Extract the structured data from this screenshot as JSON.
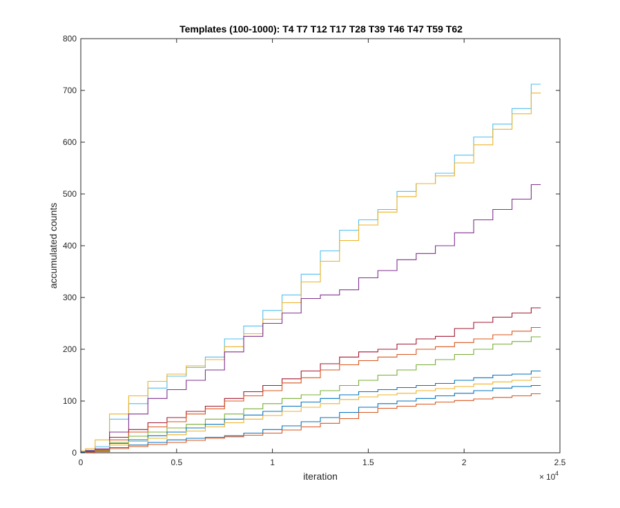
{
  "chart_data": {
    "type": "line",
    "title": "Templates (100-1000): T4 T7 T12 T17 T28 T39 T46 T47 T59 T62",
    "xlabel": "iteration",
    "ylabel": "accumulated counts",
    "xlim": [
      0,
      25000
    ],
    "ylim": [
      0,
      800
    ],
    "x_exponent_label": "× 10^4",
    "x_exponent": "4",
    "x_tick_values": [
      0,
      0.5,
      1,
      1.5,
      2,
      2.5
    ],
    "x_tick_labels": [
      "0",
      "0.5",
      "1",
      "1.5",
      "2",
      "2.5"
    ],
    "y_tick_values": [
      0,
      100,
      200,
      300,
      400,
      500,
      600,
      700,
      800
    ],
    "y_tick_labels": [
      "0",
      "100",
      "200",
      "300",
      "400",
      "500",
      "600",
      "700",
      "800"
    ],
    "grid": false,
    "x": [
      0,
      500,
      1000,
      2000,
      3000,
      4000,
      5000,
      6000,
      7000,
      8000,
      9000,
      10000,
      11000,
      12000,
      13000,
      14000,
      15000,
      16000,
      17000,
      18000,
      19000,
      20000,
      21000,
      22000,
      23000,
      24000
    ],
    "series": [
      {
        "color": "#4DBEEE",
        "values": [
          2,
          5,
          12,
          65,
          95,
          125,
          148,
          165,
          185,
          220,
          245,
          275,
          305,
          345,
          390,
          430,
          450,
          470,
          505,
          520,
          540,
          575,
          610,
          635,
          665,
          712
        ]
      },
      {
        "color": "#EDB120",
        "values": [
          4,
          8,
          25,
          75,
          110,
          138,
          152,
          168,
          180,
          205,
          230,
          258,
          290,
          330,
          370,
          410,
          440,
          465,
          495,
          520,
          535,
          560,
          595,
          625,
          655,
          695
        ]
      },
      {
        "color": "#7E2F8E",
        "values": [
          2,
          4,
          8,
          40,
          75,
          105,
          122,
          140,
          160,
          195,
          225,
          250,
          270,
          298,
          305,
          315,
          338,
          352,
          373,
          385,
          400,
          425,
          450,
          470,
          490,
          518
        ]
      },
      {
        "color": "#A2142F",
        "values": [
          1,
          3,
          6,
          30,
          45,
          58,
          68,
          80,
          90,
          105,
          118,
          130,
          143,
          158,
          172,
          185,
          195,
          200,
          210,
          220,
          225,
          240,
          252,
          262,
          270,
          280
        ]
      },
      {
        "color": "#D95319",
        "values": [
          1,
          2,
          5,
          25,
          40,
          50,
          60,
          75,
          85,
          100,
          110,
          120,
          135,
          145,
          160,
          170,
          178,
          185,
          190,
          200,
          205,
          213,
          220,
          228,
          235,
          242
        ]
      },
      {
        "color": "#77AC30",
        "values": [
          1,
          2,
          4,
          20,
          32,
          40,
          48,
          55,
          65,
          75,
          85,
          95,
          105,
          112,
          120,
          130,
          140,
          150,
          160,
          170,
          180,
          190,
          200,
          210,
          215,
          224
        ]
      },
      {
        "color": "#0072BD",
        "values": [
          1,
          2,
          3,
          18,
          25,
          33,
          40,
          48,
          55,
          65,
          73,
          80,
          90,
          98,
          105,
          112,
          118,
          122,
          126,
          130,
          134,
          140,
          145,
          150,
          152,
          158
        ]
      },
      {
        "color": "#EDB120",
        "values": [
          0,
          1,
          3,
          15,
          22,
          28,
          35,
          42,
          50,
          58,
          65,
          72,
          80,
          88,
          95,
          103,
          108,
          112,
          115,
          120,
          124,
          128,
          133,
          137,
          140,
          146
        ]
      },
      {
        "color": "#0072BD",
        "values": [
          0,
          1,
          2,
          10,
          15,
          20,
          25,
          28,
          30,
          33,
          38,
          45,
          52,
          60,
          68,
          78,
          88,
          95,
          100,
          105,
          110,
          115,
          120,
          125,
          128,
          130
        ]
      },
      {
        "color": "#D95319",
        "values": [
          0,
          1,
          2,
          8,
          12,
          16,
          20,
          24,
          28,
          31,
          34,
          38,
          44,
          50,
          57,
          66,
          78,
          86,
          90,
          94,
          98,
          101,
          104,
          107,
          110,
          114
        ]
      }
    ]
  }
}
